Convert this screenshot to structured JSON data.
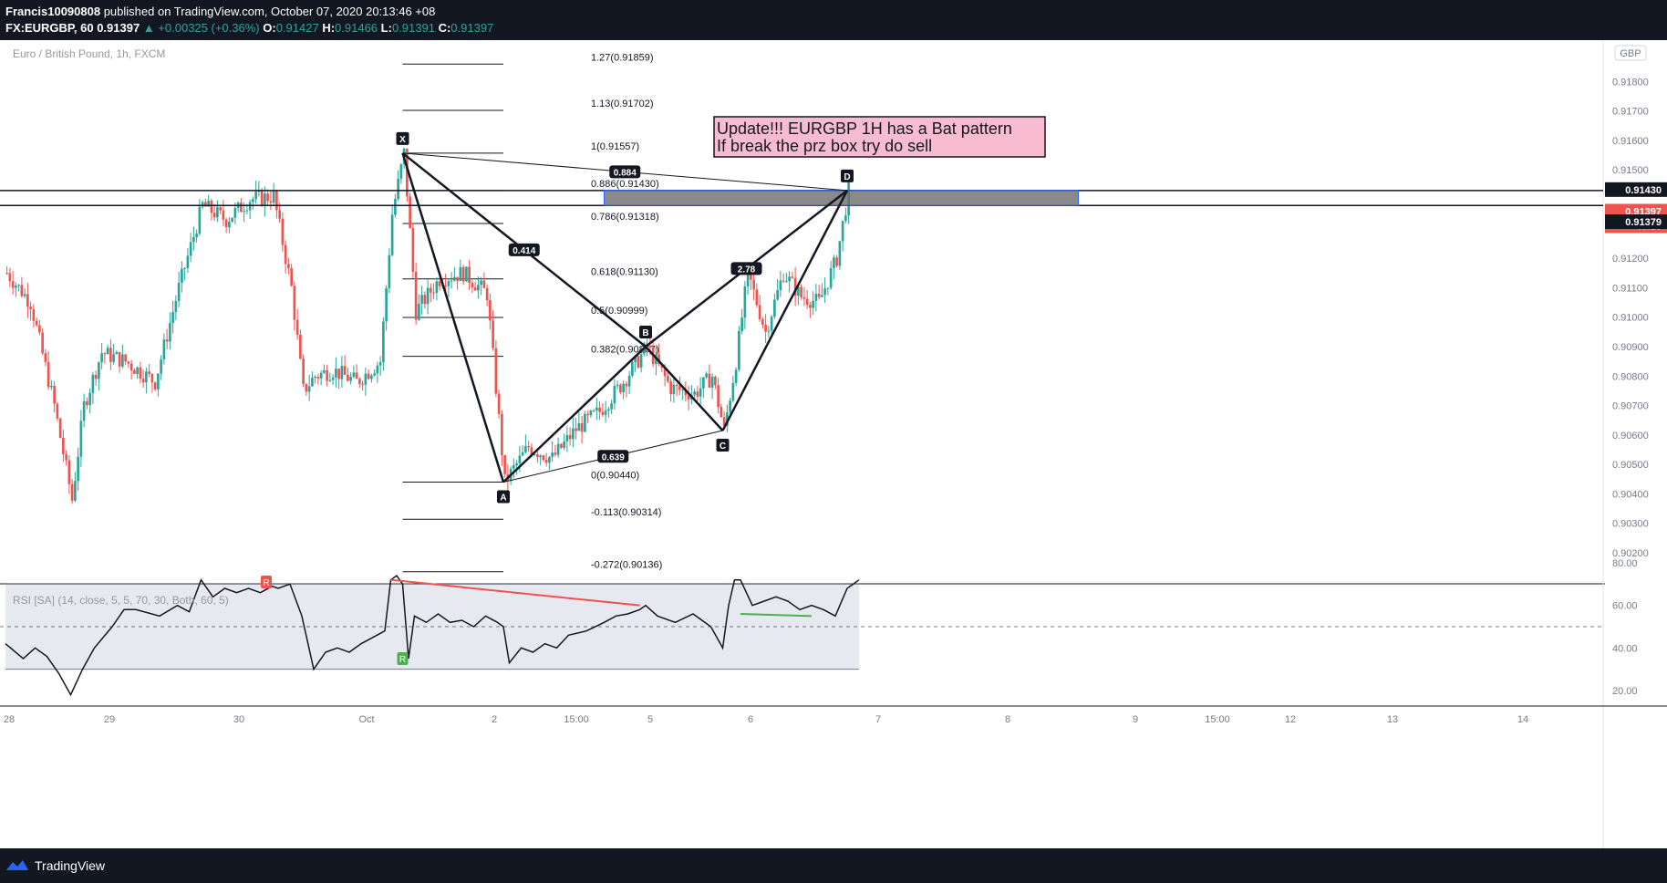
{
  "header": {
    "line1": {
      "author": "Francis10090808",
      "published": " published on TradingView.com, October 07, 2020 20:13:46 +08"
    },
    "line2": {
      "symbol": "FX:EURGBP, 60",
      "last": "0.91397",
      "change": "▲ +0.00325 (+0.36%)",
      "o_label": "O:",
      "o": "0.91427",
      "h_label": "H:",
      "h": "0.91466",
      "l_label": "L:",
      "l": "0.91391",
      "c_label": "C:",
      "c": "0.91397"
    }
  },
  "chart_title": "Euro / British Pound, 1h, FXCM",
  "currency_badge": "GBP",
  "annotation": {
    "line1": "Update!!! EURGBP 1H has a Bat pattern",
    "line2": "If break the prz box try do sell"
  },
  "footer": {
    "brand": "TradingView"
  },
  "colors": {
    "up": "#26a69a",
    "down": "#ef5350",
    "annotation_bg": "#f8bbd0",
    "prz_box": "#6d6d6d",
    "prz_border": "#2962ff"
  },
  "chart_data": [
    {
      "type": "candlestick",
      "symbol": "EURGBP",
      "timeframe": "1h",
      "y_ticks": [
        "0.91800",
        "0.91700",
        "0.91600",
        "0.91500",
        "0.91200",
        "0.91100",
        "0.91000",
        "0.90900",
        "0.90800",
        "0.90700",
        "0.90600",
        "0.90500",
        "0.90400",
        "0.90300",
        "0.90200"
      ],
      "x_ticks": [
        "28",
        "29",
        "30",
        "Oct",
        "2",
        "15:00",
        "5",
        "6",
        "7",
        "8",
        "9",
        "15:00",
        "12",
        "13",
        "14"
      ],
      "price_labels": [
        {
          "value": "0.91430",
          "style": "black"
        },
        {
          "value": "0.91397",
          "style": "red"
        },
        {
          "value": "46:18",
          "style": "red"
        },
        {
          "value": "0.91379",
          "style": "black"
        }
      ],
      "horizontal_lines": [
        0.9143,
        0.91379
      ],
      "fibonacci": [
        {
          "label": "1.27(0.91859)",
          "value": 0.91859
        },
        {
          "label": "1.13(0.91702)",
          "value": 0.91702
        },
        {
          "label": "1(0.91557)",
          "value": 0.91557
        },
        {
          "label": "0.886(0.91430)",
          "value": 0.9143
        },
        {
          "label": "0.786(0.91318)",
          "value": 0.91318
        },
        {
          "label": "0.618(0.91130)",
          "value": 0.9113
        },
        {
          "label": "0.5(0.90999)",
          "value": 0.90999
        },
        {
          "label": "0.382(0.90867)",
          "value": 0.90867
        },
        {
          "label": "0(0.90440)",
          "value": 0.9044
        },
        {
          "label": "-0.113(0.90314)",
          "value": 0.90314
        },
        {
          "label": "-0.272(0.90136)",
          "value": 0.90136
        }
      ],
      "pattern": {
        "name": "Bat",
        "points": [
          {
            "label": "X",
            "bar": 134,
            "price": 0.91557
          },
          {
            "label": "A",
            "bar": 168,
            "price": 0.9044
          },
          {
            "label": "B",
            "bar": 216,
            "price": 0.909
          },
          {
            "label": "C",
            "bar": 242,
            "price": 0.90615
          },
          {
            "label": "D",
            "bar": 284,
            "price": 0.9143
          }
        ],
        "ratios": [
          {
            "label": "0.884",
            "from": "X",
            "to": "D"
          },
          {
            "label": "0.414",
            "from": "X",
            "to": "B"
          },
          {
            "label": "0.639",
            "from": "A",
            "to": "C"
          },
          {
            "label": "2.78",
            "from": "B",
            "to": "D"
          }
        ]
      },
      "prz_box": {
        "price_top": 0.9143,
        "price_bottom": 0.91379,
        "bar_start": 202,
        "bar_end": 362
      },
      "series": [
        {
          "name": "price",
          "x_bars": [
            0,
            8,
            16,
            22,
            26,
            32,
            40,
            50,
            58,
            66,
            74,
            82,
            90,
            96,
            100,
            104,
            110,
            118,
            126,
            130,
            134,
            138,
            146,
            154,
            162,
            168,
            176,
            184,
            192,
            200,
            208,
            216,
            224,
            232,
            238,
            242,
            246,
            250,
            256,
            262,
            268,
            274,
            280,
            284
          ],
          "close": [
            0.9115,
            0.9105,
            0.907,
            0.9038,
            0.907,
            0.9088,
            0.9085,
            0.9078,
            0.911,
            0.9138,
            0.9133,
            0.914,
            0.9141,
            0.911,
            0.9075,
            0.908,
            0.9082,
            0.9078,
            0.9085,
            0.9135,
            0.91557,
            0.9102,
            0.9113,
            0.9115,
            0.9108,
            0.9044,
            0.9056,
            0.9052,
            0.9062,
            0.9068,
            0.9078,
            0.909,
            0.9076,
            0.9074,
            0.908,
            0.90615,
            0.9085,
            0.9115,
            0.9095,
            0.9115,
            0.9107,
            0.9105,
            0.912,
            0.9143
          ]
        }
      ]
    },
    {
      "type": "line",
      "title": "RSI [SA] (14, close, 5, 5, 70, 30, Both, 60, 5)",
      "y_ticks": [
        "80.00",
        "60.00",
        "40.00",
        "20.00"
      ],
      "ylim": [
        10,
        85
      ],
      "band": [
        30,
        70
      ],
      "midline": 50,
      "series": [
        {
          "name": "RSI",
          "x_bars": [
            0,
            6,
            10,
            14,
            18,
            22,
            26,
            30,
            36,
            40,
            44,
            52,
            58,
            62,
            66,
            70,
            74,
            78,
            82,
            86,
            90,
            92,
            96,
            100,
            104,
            108,
            112,
            116,
            120,
            124,
            128,
            130,
            132,
            134,
            136,
            138,
            142,
            146,
            150,
            154,
            158,
            162,
            166,
            168,
            170,
            174,
            178,
            182,
            186,
            190,
            196,
            202,
            206,
            210,
            214,
            216,
            220,
            226,
            232,
            238,
            242,
            244,
            246,
            248,
            252,
            256,
            260,
            264,
            268,
            272,
            276,
            280,
            284,
            288
          ],
          "values": [
            42,
            35,
            40,
            36,
            28,
            18,
            30,
            40,
            50,
            58,
            58,
            55,
            60,
            57,
            72,
            64,
            68,
            66,
            68,
            66,
            69,
            68,
            70,
            55,
            30,
            38,
            40,
            38,
            42,
            45,
            48,
            72,
            74,
            70,
            35,
            55,
            52,
            56,
            52,
            53,
            50,
            55,
            52,
            50,
            33,
            40,
            38,
            42,
            40,
            46,
            48,
            52,
            55,
            56,
            58,
            60,
            55,
            52,
            56,
            50,
            40,
            60,
            72,
            72,
            60,
            62,
            64,
            62,
            58,
            60,
            58,
            55,
            68,
            72
          ]
        }
      ],
      "divergence_labels": [
        "R",
        "R"
      ]
    }
  ]
}
